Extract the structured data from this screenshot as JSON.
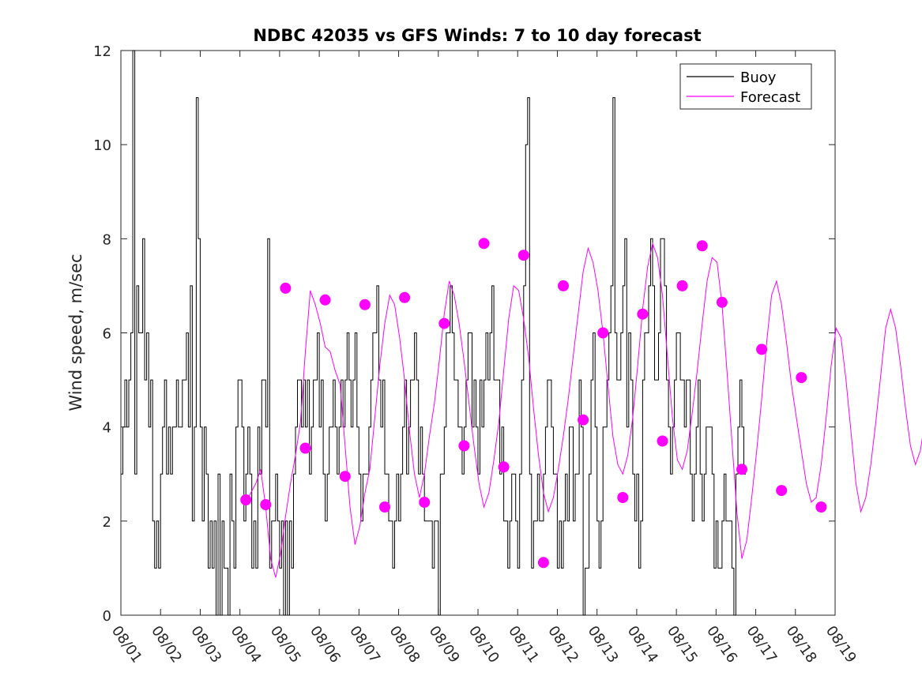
{
  "chart_data": {
    "type": "line",
    "title": "NDBC 42035 vs GFS Winds: 7 to 10 day forecast",
    "xlabel": "",
    "ylabel": "Wind speed, m/sec",
    "ylim": [
      0,
      12
    ],
    "xlim": [
      0,
      18
    ],
    "yticks": [
      0,
      2,
      4,
      6,
      8,
      10,
      12
    ],
    "xtick_labels": [
      "08/01",
      "08/02",
      "08/03",
      "08/04",
      "08/05",
      "08/06",
      "08/07",
      "08/08",
      "08/09",
      "08/10",
      "08/11",
      "08/12",
      "08/13",
      "08/14",
      "08/15",
      "08/16",
      "08/17",
      "08/18",
      "08/19"
    ],
    "legend": {
      "position": "top-right",
      "entries": [
        "Buoy",
        "Forecast"
      ]
    },
    "colors": {
      "buoy": "#000000",
      "forecast": "#ff00ff"
    },
    "series": [
      {
        "name": "Buoy",
        "x_start_day": 0,
        "x_step_days": 0.05,
        "values": [
          3,
          4,
          5,
          4,
          5,
          6,
          12,
          3,
          7,
          6,
          6,
          8,
          5,
          6,
          4,
          5,
          2,
          1,
          2,
          1,
          3,
          4,
          5,
          3,
          4,
          3,
          4,
          4,
          5,
          4,
          4,
          5,
          5,
          6,
          4,
          7,
          2,
          4,
          11,
          8,
          4,
          2,
          4,
          3,
          1,
          2,
          1,
          2,
          0,
          3,
          0,
          2,
          1,
          1,
          0,
          3,
          2,
          1,
          4,
          5,
          5,
          4,
          2,
          3,
          4,
          3,
          1,
          2,
          1,
          4,
          3,
          5,
          5,
          4,
          8,
          1,
          2,
          2,
          3,
          2,
          1,
          2,
          0,
          2,
          0,
          2,
          1,
          3,
          4,
          5,
          5,
          4,
          5,
          4,
          5,
          3,
          4,
          5,
          5,
          6,
          4,
          5,
          3,
          2,
          3,
          4,
          4,
          5,
          4,
          3,
          4,
          5,
          4,
          5,
          6,
          5,
          4,
          5,
          6,
          4,
          3,
          2,
          3,
          3,
          3,
          4,
          5,
          6,
          6,
          7,
          5,
          4,
          5,
          3,
          3,
          2,
          2,
          1,
          2,
          3,
          2,
          3,
          4,
          5,
          3,
          4,
          5,
          5,
          6,
          5,
          3,
          4,
          3,
          2,
          2,
          2,
          2,
          1,
          2,
          2,
          0,
          3,
          3,
          4,
          6,
          6,
          7,
          6,
          5,
          5,
          4,
          4,
          3,
          4,
          5,
          6,
          6,
          4,
          5,
          4,
          3,
          5,
          4,
          5,
          6,
          5,
          6,
          7,
          5,
          5,
          5,
          3,
          4,
          2,
          2,
          1,
          2,
          3,
          3,
          2,
          1,
          3,
          5,
          7,
          10,
          11,
          3,
          1,
          2,
          2,
          3,
          2,
          2,
          3,
          4,
          5,
          5,
          4,
          3,
          3,
          1,
          2,
          1,
          2,
          3,
          2,
          4,
          4,
          2,
          3,
          3,
          5,
          4,
          0,
          1,
          1,
          3,
          5,
          6,
          4,
          2,
          1,
          2,
          4,
          4,
          5,
          6,
          7,
          11,
          6,
          5,
          5,
          6,
          7,
          8,
          4,
          6,
          5,
          3,
          2,
          3,
          1,
          2,
          5,
          6,
          6,
          7,
          8,
          7,
          5,
          5,
          6,
          8,
          8,
          7,
          5,
          4,
          3,
          4,
          5,
          6,
          6,
          5,
          5,
          4,
          5,
          5,
          3,
          2,
          3,
          4,
          5,
          3,
          2,
          3,
          4,
          4,
          4,
          3,
          1,
          2,
          1,
          1,
          2,
          3,
          2,
          2,
          2,
          1,
          0,
          3,
          4,
          5,
          4,
          3
        ]
      },
      {
        "name": "Forecast",
        "x_start_day": 3.15,
        "x_step_days": 0.125,
        "traces": [
          [
            2.4,
            2.6,
            2.8,
            3.1,
            2.3,
            1.2,
            0.8,
            1.3,
            2.1,
            2.8,
            3.4,
            4.1,
            5.6,
            6.9,
            6.6,
            6.2,
            5.7,
            5.6,
            5.2,
            4.9,
            3.6,
            2.3,
            1.5,
            1.9,
            2.6,
            3.1,
            4.2,
            5.3,
            6.2,
            6.8,
            6.6,
            5.9,
            5.0,
            3.9,
            3.0,
            2.5,
            3.0,
            3.8,
            4.5,
            5.4,
            6.4,
            7.1,
            6.8,
            6.2,
            5.4,
            4.5,
            3.6,
            2.8,
            2.3,
            2.6,
            3.3,
            4.1,
            5.2,
            6.3,
            7.0,
            6.9,
            6.3,
            5.5,
            4.4,
            3.4,
            2.6,
            2.2,
            2.5,
            3.1,
            3.8,
            4.6,
            5.5,
            6.4,
            7.3,
            7.8,
            7.5,
            6.9,
            6.0,
            4.9,
            3.8,
            3.2,
            3.0,
            3.4,
            4.2,
            5.3,
            6.5,
            7.4,
            7.9,
            7.6,
            6.8,
            5.5,
            4.2,
            3.3,
            3.1,
            3.5,
            4.3,
            5.2,
            6.2,
            7.1,
            7.6,
            7.5,
            6.6,
            5.2,
            3.7,
            2.2,
            1.2,
            1.6,
            2.5,
            3.5,
            4.6,
            5.8,
            6.8,
            7.1,
            6.6,
            5.8,
            4.9,
            4.2,
            3.5,
            2.8,
            2.4,
            2.5,
            3.2,
            4.2,
            5.3,
            6.1,
            5.9,
            5.0,
            3.9,
            2.8,
            2.2,
            2.5,
            3.2,
            4.1,
            5.1,
            6.1,
            6.5,
            6.1,
            5.3,
            4.4,
            3.6,
            3.2,
            3.5,
            4.2,
            5.1,
            6.1,
            6.9,
            7.1,
            6.7,
            6.0,
            5.3,
            4.7,
            4.5,
            5.2,
            6.3,
            7.5,
            7.9,
            7.3,
            6.2,
            5.0,
            3.9,
            3.0,
            2.8,
            3.3,
            4.3,
            5.4,
            6.3,
            6.6,
            6.1,
            5.0,
            3.7,
            2.6,
            2.0,
            2.3,
            3.2,
            4.3,
            5.3,
            6.0,
            5.8,
            5.0,
            4.1,
            3.2,
            2.5,
            2.3,
            2.8,
            3.6,
            4.4,
            4.9,
            4.6,
            3.9,
            3.1,
            2.4,
            2.1
          ]
        ],
        "markers": [
          {
            "x": 3.15,
            "y": 2.45
          },
          {
            "x": 3.65,
            "y": 2.35
          },
          {
            "x": 4.15,
            "y": 6.95
          },
          {
            "x": 4.65,
            "y": 3.55
          },
          {
            "x": 5.15,
            "y": 6.7
          },
          {
            "x": 5.65,
            "y": 2.95
          },
          {
            "x": 6.15,
            "y": 6.6
          },
          {
            "x": 6.65,
            "y": 2.3
          },
          {
            "x": 7.15,
            "y": 6.75
          },
          {
            "x": 7.65,
            "y": 2.4
          },
          {
            "x": 8.15,
            "y": 6.2
          },
          {
            "x": 8.65,
            "y": 3.6
          },
          {
            "x": 9.15,
            "y": 7.9
          },
          {
            "x": 9.65,
            "y": 3.15
          },
          {
            "x": 10.15,
            "y": 7.65
          },
          {
            "x": 10.65,
            "y": 1.12
          },
          {
            "x": 11.15,
            "y": 7.0
          },
          {
            "x": 11.65,
            "y": 4.15
          },
          {
            "x": 12.15,
            "y": 6.0
          },
          {
            "x": 12.65,
            "y": 2.5
          },
          {
            "x": 13.15,
            "y": 6.4
          },
          {
            "x": 13.65,
            "y": 3.7
          },
          {
            "x": 14.15,
            "y": 7.0
          },
          {
            "x": 14.65,
            "y": 7.85
          },
          {
            "x": 15.15,
            "y": 6.65
          },
          {
            "x": 15.65,
            "y": 3.1
          },
          {
            "x": 16.15,
            "y": 5.65
          },
          {
            "x": 16.65,
            "y": 2.65
          },
          {
            "x": 17.15,
            "y": 5.05
          },
          {
            "x": 17.65,
            "y": 2.3
          }
        ]
      }
    ]
  }
}
